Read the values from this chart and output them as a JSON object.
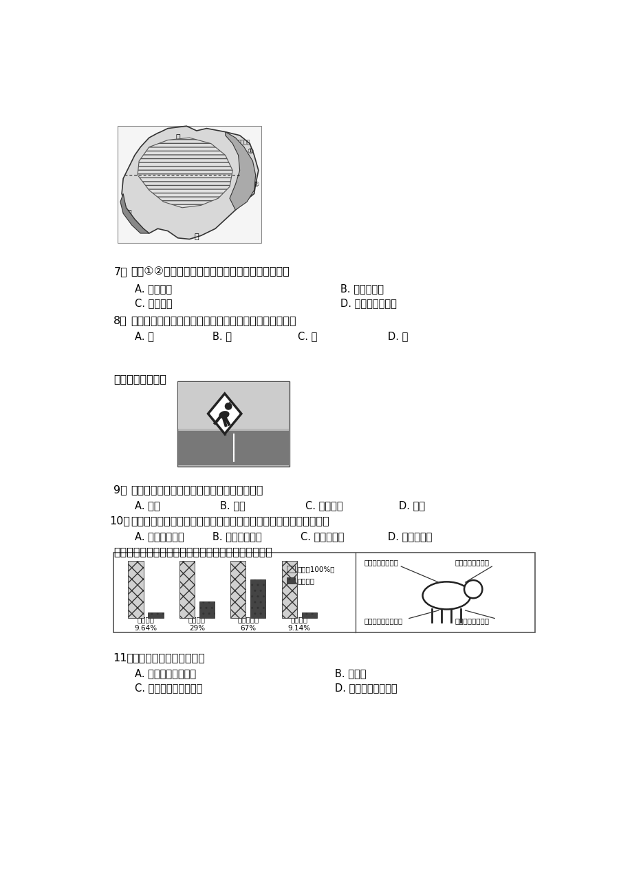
{
  "bg_color": "#ffffff",
  "page_width": 9.2,
  "page_height": 13.02,
  "q7_num": "7．",
  "q7_text": "图中①②气候类型呈狭长分布的主要影响因素是（）",
  "q7_A": "A. 纬度因素",
  "q7_B": "B. 西风的影响",
  "q7_C": "C. 地形因素",
  "q7_D": "D. 人类活动的影响",
  "q8_num": "8．",
  "q8_text": "某农场主计划从英国引种多汁牧草，应选择的地点是（）",
  "q8_A": "A. 甲",
  "q8_B": "B. 乙",
  "q8_C": "C. 丙",
  "q8_D": "D. 丁",
  "intro2": "读图，完成下题。",
  "q9_num": "9．",
  "q9_text": "大量分布有路标上所示动物（下图）的国家是",
  "q9_A": "A. 美国",
  "q9_B": "B. 巴西",
  "q9_C": "C. 澳大利亚",
  "q9_D": "D. 法国",
  "q10_num": "10．",
  "q10_text": "除路标所示动物，该国还有许多古老的物种繁衍至今，其主要原因是",
  "q10_A": "A. 自然环境单一",
  "q10_B": "B. 气候炎热干燥",
  "q10_C": "C. 位于南半球",
  "q10_D": "D. 动物进化快",
  "q10_intro": "读澳大利亚养羊业在世界上的地位图，完成下列各题。",
  "q11_num": "11．",
  "q11_text": "由图可知澳大利亚被称为",
  "q11_A": "A. 坐在矿车上的国家",
  "q11_B": "B. 火山国",
  "q11_C": "C. 欧洲的牧场和食品库",
  "q11_D": "D. 骑在羊背上的国家",
  "sheep_bar_categories": [
    "羊只数量",
    "羊毛产量",
    "羊毛出口量",
    "羊肉产量"
  ],
  "sheep_bar_pcts": [
    "9.64%",
    "29%",
    "67%",
    "9.14%"
  ],
  "sheep_aus_ratio": [
    0.0964,
    0.29,
    0.67,
    0.0914
  ],
  "legend_world": "世界（100%）",
  "legend_aus": "澳大利亚",
  "sheep_label_tl": "绵羊头数世界第一",
  "sheep_label_tr": "羊毛产量世界第一",
  "sheep_label_bl": "羊毛出口量世界第一",
  "sheep_label_br": "羊肉产量世界第一"
}
